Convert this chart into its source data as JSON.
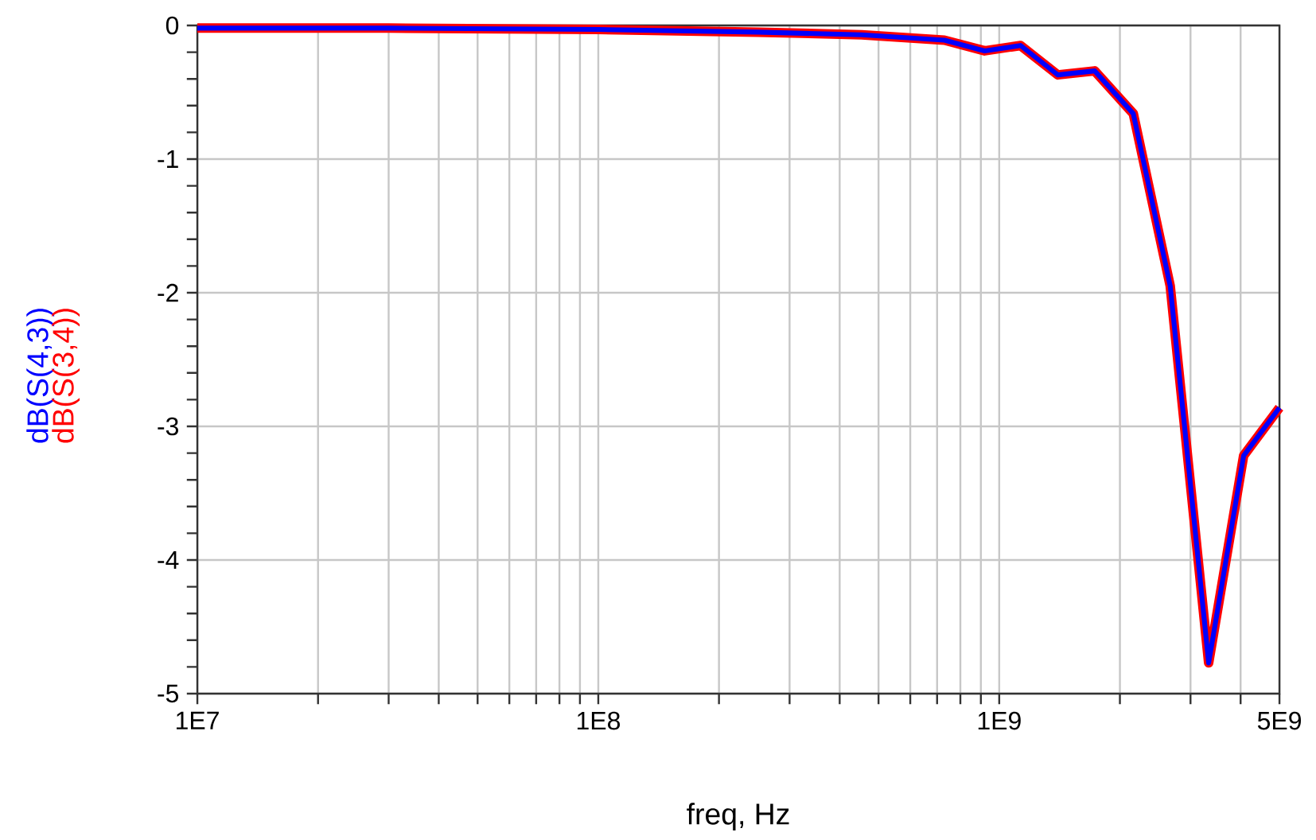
{
  "chart_data": {
    "type": "line",
    "xlabel": "freq, Hz",
    "log": "x",
    "grid": true,
    "marker": "none",
    "line_style": "solid",
    "xlim": [
      10000000,
      5000000000
    ],
    "ylim": [
      -5,
      0
    ],
    "xticks": [
      {
        "value": 10000000,
        "label": "1E7"
      },
      {
        "value": 100000000,
        "label": "1E8"
      },
      {
        "value": 1000000000,
        "label": "1E9"
      },
      {
        "value": 5000000000,
        "label": "5E9"
      }
    ],
    "yticks": [
      -5,
      -4,
      -3,
      -2,
      -1,
      0
    ],
    "x": [
      10000000,
      30000000,
      100000000,
      250000000,
      454000000,
      730000000,
      920000000,
      1130000000,
      1400000000,
      1730000000,
      2160000000,
      2670000000,
      3330000000,
      4070000000,
      5000000000
    ],
    "series": [
      {
        "name": "dB(S(4,3))",
        "color": "#0000ff",
        "values": [
          -0.02,
          -0.02,
          -0.03,
          -0.05,
          -0.07,
          -0.11,
          -0.19,
          -0.15,
          -0.37,
          -0.34,
          -0.66,
          -1.95,
          -4.77,
          -3.22,
          -2.86
        ]
      },
      {
        "name": "dB(S(3,4))",
        "color": "#ff0000",
        "values": [
          -0.02,
          -0.02,
          -0.03,
          -0.05,
          -0.07,
          -0.11,
          -0.19,
          -0.15,
          -0.37,
          -0.34,
          -0.66,
          -1.95,
          -4.77,
          -3.22,
          -2.86
        ]
      }
    ]
  }
}
